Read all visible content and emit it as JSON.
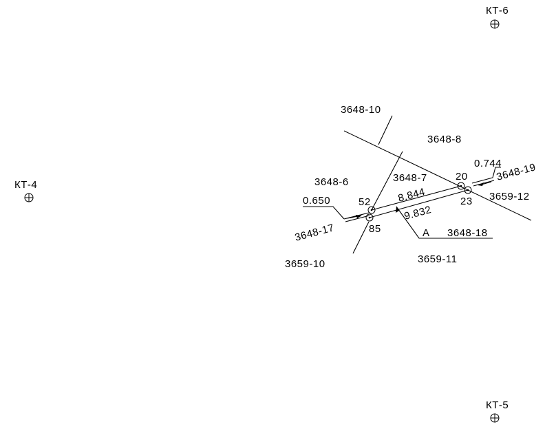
{
  "control_points": [
    {
      "id": "kt4",
      "label": "КТ-4"
    },
    {
      "id": "kt5",
      "label": "КТ-5"
    },
    {
      "id": "kt6",
      "label": "КТ-6"
    }
  ],
  "parcels": {
    "p3648_10": "3648-10",
    "p3648_8": "3648-8",
    "p3648_6": "3648-6",
    "p3648_7": "3648-7",
    "p3648_19": "3648-19",
    "p3659_12": "3659-12",
    "p3648_17": "3648-17",
    "p3659_10": "3659-10",
    "p3659_11": "3659-11",
    "p3648_18": "3648-18"
  },
  "points": {
    "n52": "52",
    "n85": "85",
    "n20": "20",
    "n23": "23"
  },
  "measurements": {
    "width_left": "0.650",
    "width_right": "0.744",
    "length_top": "8.844",
    "length_bottom": "9.832"
  },
  "section": {
    "marker": "А"
  }
}
